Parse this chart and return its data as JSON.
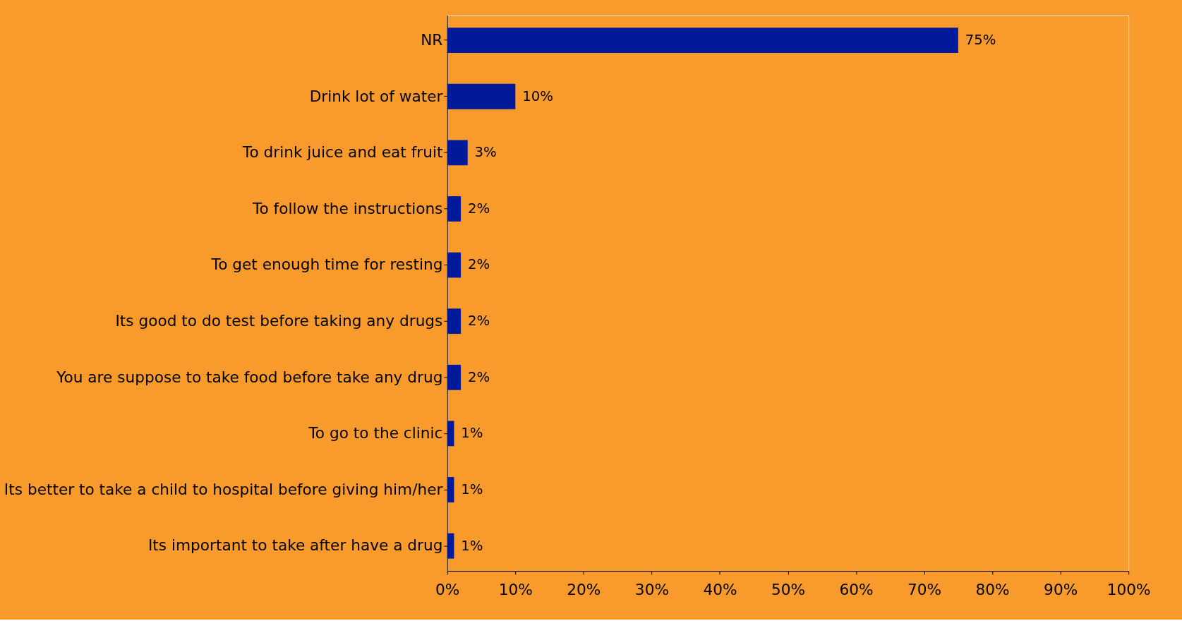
{
  "chart_data": {
    "type": "bar",
    "orientation": "horizontal",
    "categories": [
      "NR",
      "Drink lot of water",
      "To drink juice and eat fruit",
      "To follow the instructions",
      "To get enough time for resting",
      "Its good to do test before taking any drugs",
      "You are suppose to take food before take any drug",
      "To go to the clinic",
      "Its better to take a child to hospital before giving him/her",
      "Its important to take after have a drug"
    ],
    "values": [
      75,
      10,
      3,
      2,
      2,
      2,
      2,
      1,
      1,
      1
    ],
    "value_labels": [
      "75%",
      "10%",
      "3%",
      "2%",
      "2%",
      "2%",
      "2%",
      "1%",
      "1%",
      "1%"
    ],
    "color": "#001a99",
    "xlim": [
      0,
      100
    ],
    "xticks": [
      {
        "value": 0,
        "label": "0%"
      },
      {
        "value": 10,
        "label": "10%"
      },
      {
        "value": 20,
        "label": "20%"
      },
      {
        "value": 30,
        "label": "30%"
      },
      {
        "value": 40,
        "label": "40%"
      },
      {
        "value": 50,
        "label": "50%"
      },
      {
        "value": 60,
        "label": "60%"
      },
      {
        "value": 70,
        "label": "70%"
      },
      {
        "value": 80,
        "label": "80%"
      },
      {
        "value": 90,
        "label": "90%"
      },
      {
        "value": 100,
        "label": "100%"
      }
    ],
    "grid": false
  }
}
